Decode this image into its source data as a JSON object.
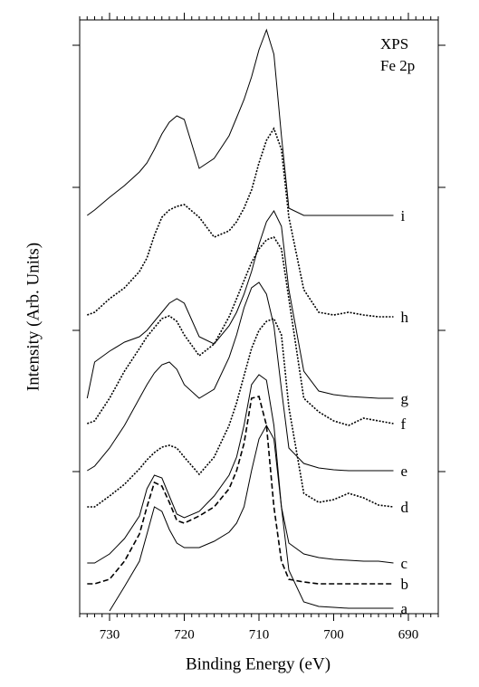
{
  "chart_data": {
    "type": "line",
    "annotations": [
      "XPS",
      "Fe 2p"
    ],
    "xlabel": "Binding Energy (eV)",
    "ylabel": "Intensity (Arb. Units)",
    "xlim": [
      734,
      686
    ],
    "xticks": [
      730,
      720,
      710,
      700,
      690
    ],
    "ylim": [
      0,
      656
    ],
    "x": [
      733,
      732,
      730,
      728,
      726,
      725,
      724,
      723,
      722,
      721,
      720,
      718,
      716,
      714,
      713,
      712,
      711,
      710,
      709,
      708,
      707,
      706,
      704,
      702,
      700,
      698,
      696,
      694,
      692
    ],
    "series": [
      {
        "name": "a",
        "color": "#000000",
        "style": "solid",
        "values": [
          null,
          null,
          3,
          30,
          58,
          88,
          118,
          113,
          93,
          78,
          73,
          73,
          80,
          90,
          100,
          118,
          158,
          193,
          208,
          193,
          118,
          48,
          13,
          8,
          7,
          6,
          6,
          6,
          6
        ]
      },
      {
        "name": "b",
        "color": "#000000",
        "style": "dashed",
        "values": [
          33,
          33,
          38,
          58,
          88,
          118,
          145,
          141,
          123,
          103,
          100,
          108,
          118,
          138,
          158,
          188,
          238,
          240,
          208,
          118,
          58,
          38,
          35,
          33,
          33,
          33,
          33,
          33,
          33
        ]
      },
      {
        "name": "c",
        "color": "#000000",
        "style": "solid",
        "values": [
          56,
          56,
          66,
          83,
          108,
          138,
          153,
          150,
          130,
          110,
          106,
          113,
          130,
          153,
          173,
          208,
          253,
          264,
          258,
          208,
          118,
          78,
          66,
          62,
          60,
          59,
          58,
          58,
          56
        ]
      },
      {
        "name": "d",
        "color": "#000000",
        "style": "dotted",
        "values": [
          118,
          118,
          130,
          143,
          160,
          170,
          178,
          184,
          186,
          183,
          173,
          154,
          173,
          208,
          233,
          263,
          293,
          313,
          323,
          326,
          308,
          228,
          133,
          123,
          126,
          133,
          128,
          120,
          118
        ]
      },
      {
        "name": "e",
        "color": "#000000",
        "style": "solid",
        "values": [
          158,
          163,
          183,
          208,
          238,
          253,
          266,
          275,
          278,
          270,
          253,
          238,
          248,
          283,
          308,
          338,
          360,
          366,
          353,
          318,
          248,
          183,
          166,
          161,
          159,
          158,
          158,
          158,
          158
        ]
      },
      {
        "name": "f",
        "color": "#000000",
        "style": "dotted",
        "values": [
          210,
          213,
          238,
          268,
          293,
          306,
          316,
          326,
          329,
          323,
          308,
          285,
          298,
          328,
          348,
          368,
          388,
          403,
          413,
          416,
          403,
          348,
          238,
          223,
          213,
          208,
          216,
          213,
          210
        ]
      },
      {
        "name": "g",
        "color": "#000000",
        "style": "solid",
        "values": [
          238,
          278,
          290,
          300,
          306,
          313,
          323,
          333,
          343,
          348,
          343,
          306,
          298,
          318,
          333,
          353,
          378,
          408,
          433,
          445,
          428,
          358,
          268,
          246,
          242,
          240,
          239,
          238,
          238
        ]
      },
      {
        "name": "h",
        "color": "#000000",
        "style": "dotted",
        "values": [
          330,
          333,
          348,
          360,
          378,
          393,
          418,
          438,
          446,
          450,
          452,
          438,
          416,
          423,
          433,
          448,
          468,
          498,
          523,
          536,
          513,
          438,
          358,
          333,
          330,
          333,
          330,
          328,
          328
        ]
      },
      {
        "name": "i",
        "color": "#000000",
        "style": "solid",
        "values": [
          440,
          446,
          460,
          473,
          488,
          498,
          513,
          530,
          543,
          550,
          546,
          492,
          503,
          528,
          548,
          568,
          593,
          623,
          645,
          618,
          528,
          448,
          440,
          440,
          440,
          440,
          440,
          440,
          440
        ]
      }
    ]
  }
}
